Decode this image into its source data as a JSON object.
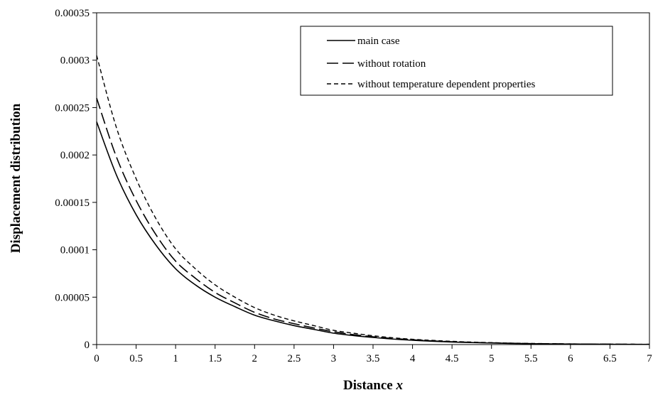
{
  "chart_data": {
    "type": "line",
    "title": "",
    "xlabel": "Distance x",
    "xlabel_parts": [
      "Distance ",
      "x"
    ],
    "ylabel": "Displacement distribution",
    "xlim": [
      0,
      7
    ],
    "ylim": [
      0,
      0.00035
    ],
    "x_ticks": [
      "0",
      "0.5",
      "1",
      "1.5",
      "2",
      "2.5",
      "3",
      "3.5",
      "4",
      "4.5",
      "5",
      "5.5",
      "6",
      "6.5",
      "7"
    ],
    "y_ticks": [
      "0",
      "0.00005",
      "0.0001",
      "0.00015",
      "0.0002",
      "0.00025",
      "0.0003",
      "0.00035"
    ],
    "grid": false,
    "legend_position": "top-right",
    "x": [
      0,
      0.25,
      0.5,
      0.75,
      1,
      1.25,
      1.5,
      1.75,
      2,
      2.25,
      2.5,
      2.75,
      3,
      3.25,
      3.5,
      3.75,
      4,
      4.25,
      4.5,
      4.75,
      5,
      5.25,
      5.5,
      5.75,
      6,
      6.25,
      6.5,
      6.75,
      7
    ],
    "series": [
      {
        "name": "main case",
        "style": "solid",
        "values": [
          0.000235,
          0.000179,
          0.000137,
          0.000105,
          8e-05,
          6.3e-05,
          5e-05,
          4e-05,
          3.1e-05,
          2.5e-05,
          2e-05,
          1.6e-05,
          1.2e-05,
          9.5e-06,
          7.5e-06,
          5.8e-06,
          4.5e-06,
          3.5e-06,
          2.7e-06,
          2.1e-06,
          1.6e-06,
          1.2e-06,
          9e-07,
          7e-07,
          5e-07,
          4e-07,
          3e-07,
          2e-07,
          2e-07
        ]
      },
      {
        "name": "without rotation",
        "style": "long-dash",
        "values": [
          0.00026,
          0.000198,
          0.000152,
          0.000116,
          8.8e-05,
          7e-05,
          5.5e-05,
          4.4e-05,
          3.4e-05,
          2.7e-05,
          2.2e-05,
          1.75e-05,
          1.35e-05,
          1.05e-05,
          8.2e-06,
          6.4e-06,
          5e-06,
          3.9e-06,
          3e-06,
          2.3e-06,
          1.8e-06,
          1.4e-06,
          1e-06,
          8e-07,
          6e-07,
          5e-07,
          4e-07,
          3e-07,
          2e-07
        ]
      },
      {
        "name": "without temperature dependent properties",
        "style": "short-dash",
        "values": [
          0.000305,
          0.000229,
          0.000175,
          0.000133,
          0.000101,
          8e-05,
          6.3e-05,
          5e-05,
          3.9e-05,
          3.1e-05,
          2.5e-05,
          2e-05,
          1.5e-05,
          1.2e-05,
          9.3e-06,
          7.2e-06,
          5.6e-06,
          4.4e-06,
          3.4e-06,
          2.6e-06,
          2e-06,
          1.5e-06,
          1.2e-06,
          9e-07,
          7e-07,
          5e-07,
          4e-07,
          3e-07,
          2e-07
        ]
      }
    ]
  }
}
